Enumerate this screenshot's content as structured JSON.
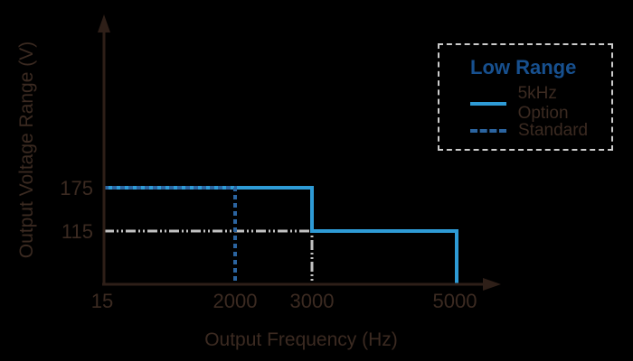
{
  "colors": {
    "background": "#000000",
    "axis": "#2e1f18",
    "text": "#3b2a21",
    "blue_solid": "#2e9bd6",
    "blue_dash": "#2b64a0",
    "blue_title": "#17508f",
    "gray_guide": "#c2c2c2",
    "legend_border": "#cccccc"
  },
  "chart_data": {
    "type": "line",
    "title": "",
    "xlabel": "Output Frequency (Hz)",
    "ylabel": "Output Voltage Range (V)",
    "x_ticks": [
      "15",
      "2000",
      "3000",
      "5000"
    ],
    "y_ticks": [
      "175",
      "115"
    ],
    "xlim": [
      15,
      5000
    ],
    "ylim": [
      0,
      200
    ],
    "grid": false,
    "legend_position": "top-right",
    "series": [
      {
        "name": "5kHz Option",
        "style": "solid",
        "color": "#2e9bd6",
        "points": [
          [
            15,
            175
          ],
          [
            3000,
            175
          ],
          [
            3000,
            115
          ],
          [
            5000,
            115
          ],
          [
            5000,
            0
          ]
        ]
      },
      {
        "name": "Standard",
        "style": "dashed",
        "color": "#2b64a0",
        "points": [
          [
            15,
            175
          ],
          [
            2000,
            175
          ],
          [
            2000,
            0
          ]
        ]
      }
    ],
    "reference_lines": [
      {
        "name": "guide-115-at-3000",
        "style": "dash-dot-dot",
        "color": "#c2c2c2",
        "points": [
          [
            15,
            115
          ],
          [
            3000,
            115
          ],
          [
            3000,
            0
          ]
        ]
      }
    ]
  },
  "axes": {
    "x_label": "Output Frequency (Hz)",
    "y_label": "Output Voltage Range (V)",
    "x_ticks": [
      "15",
      "2000",
      "3000",
      "5000"
    ],
    "y_ticks": [
      "175",
      "115"
    ]
  },
  "legend": {
    "title": "Low Range",
    "items": [
      {
        "label": "5kHz Option",
        "style": "solid"
      },
      {
        "label": "Standard",
        "style": "dashed"
      }
    ]
  }
}
